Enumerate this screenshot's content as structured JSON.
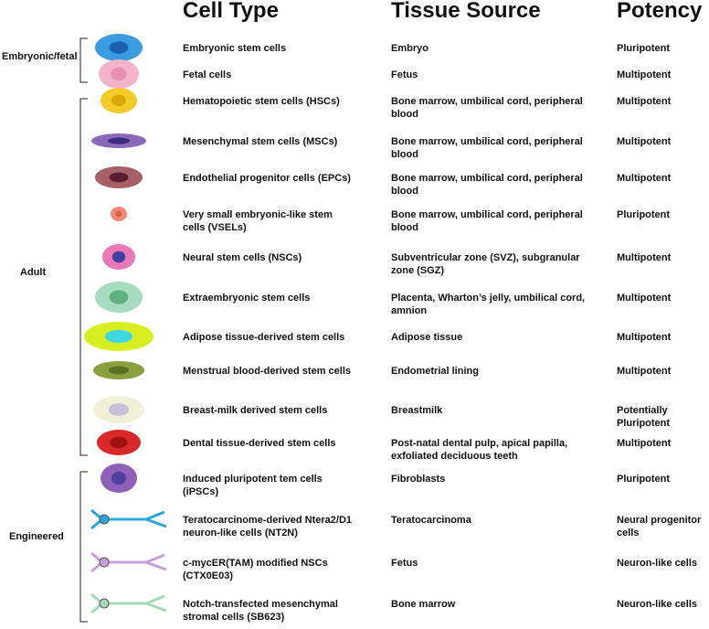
{
  "header": {
    "cell_type": "Cell Type",
    "tissue_source": "Tissue Source",
    "potency": "Potency"
  },
  "groups": [
    {
      "label": "Embryonic/fetal",
      "rows": [
        [
          "Embryonic stem cells",
          "Embryo",
          "Pluripotent"
        ],
        [
          "Fetal cells",
          "Fetus",
          "Multipotent"
        ]
      ]
    },
    {
      "label": "Adult",
      "rows": [
        [
          "Hematopoietic stem cells (HSCs)",
          "Bone marrow, umbilical cord, peripheral blood",
          "Multipotent"
        ],
        [
          "Mesenchymal stem cells (MSCs)",
          "Bone marrow, umbilical cord, peripheral blood",
          "Multipotent"
        ],
        [
          "Endothelial progenitor cells (EPCs)",
          "Bone marrow, umbilical cord, peripheral blood",
          "Multipotent"
        ],
        [
          "Very small embryonic-like stem cells (VSELs)",
          "Bone marrow, umbilical cord, peripheral blood",
          "Pluripotent"
        ],
        [
          "Neural stem cells (NSCs)",
          "Subventricular zone (SVZ), subgranular zone (SGZ)",
          "Multipotent"
        ],
        [
          "Extraembryonic stem cells",
          "Placenta, Wharton’s jelly, umbilical cord, amnion",
          "Multipotent"
        ],
        [
          "Adipose tissue-derived stem cells",
          "Adipose tissue",
          "Multipotent"
        ],
        [
          "Menstrual blood-derived stem cells",
          "Endometrial lining",
          "Multipotent"
        ],
        [
          "Breast-milk derived stem cells",
          "Breastmilk",
          "Potentially Pluripotent"
        ],
        [
          "Dental tissue-derived stem cells",
          "Post-natal dental pulp, apical papilla, exfoliated deciduous teeth",
          "Multipotent"
        ]
      ]
    },
    {
      "label": "Engineered",
      "rows": [
        [
          "Induced pluripotent tem cells (iPSCs)",
          "Fibroblasts",
          "Pluripotent"
        ],
        [
          "Teratocarcinome-derived Ntera2/D1 neuron-like cells (NT2N)",
          "Teratocarcinoma",
          "Neural progenitor cells"
        ],
        [
          "c-mycER(TAM) modified NSCs (CTX0E03)",
          "Fetus",
          "Neuron-like cells"
        ],
        [
          "Notch-transfected mesenchymal stromal cells (SB623)",
          "Bone marrow",
          "Neuron-like cells"
        ]
      ]
    }
  ]
}
